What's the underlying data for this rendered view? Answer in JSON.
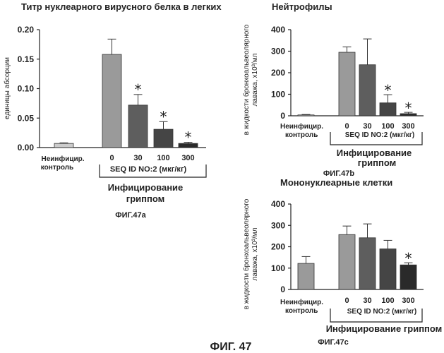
{
  "figure_caption": "ФИГ. 47",
  "chart_data": [
    {
      "type": "bar",
      "title": "Титр нуклеарного вирусного белка в легких",
      "ylabel": "единицы абсорции",
      "ylim": [
        0,
        0.2
      ],
      "yticks": [
        "0.00",
        "0.05",
        "0.10",
        "0.15",
        "0.20"
      ],
      "control_label_1": "Неинфицир.",
      "control_label_2": "контроль",
      "categories": [
        "0",
        "30",
        "100",
        "300"
      ],
      "dose_label": "SEQ ID NO:2 (мкг/кг)",
      "group_label_1": "Инфицирование",
      "group_label_2": "гриппом",
      "fig_label": "ФИГ.47a",
      "bars": [
        {
          "value": 0.007,
          "error": 0.001,
          "color": "#cccccc",
          "significant": false
        },
        {
          "value": 0.158,
          "error": 0.026,
          "color": "#9a9a9a",
          "significant": false
        },
        {
          "value": 0.072,
          "error": 0.018,
          "color": "#5e5e5e",
          "significant": true
        },
        {
          "value": 0.031,
          "error": 0.013,
          "color": "#454545",
          "significant": true
        },
        {
          "value": 0.007,
          "error": 0.002,
          "color": "#2a2a2a",
          "significant": true
        }
      ]
    },
    {
      "type": "bar",
      "title": "Нейтрофилы",
      "ylabel_1": "в жидкости бронхоальвеолярного",
      "ylabel_2": "лаважа, x10³/мл",
      "ylim": [
        0,
        400
      ],
      "yticks": [
        "0",
        "100",
        "200",
        "300",
        "400"
      ],
      "control_label_1": "Неинфицир.",
      "control_label_2": "контроль",
      "categories": [
        "0",
        "30",
        "100",
        "300"
      ],
      "dose_label": "SEQ ID NO:2 (мкг/кг)",
      "group_label_1": "Инфицирование",
      "group_label_2": "гриппом",
      "fig_label": "ФИГ.47b",
      "bars": [
        {
          "value": 4,
          "error": 2,
          "color": "#cccccc",
          "significant": false
        },
        {
          "value": 295,
          "error": 25,
          "color": "#9a9a9a",
          "significant": false
        },
        {
          "value": 237,
          "error": 120,
          "color": "#5e5e5e",
          "significant": false
        },
        {
          "value": 60,
          "error": 38,
          "color": "#454545",
          "significant": true
        },
        {
          "value": 10,
          "error": 6,
          "color": "#2a2a2a",
          "significant": true
        }
      ]
    },
    {
      "type": "bar",
      "title": "Мононуклеарные клетки",
      "ylabel_1": "в жидкости бронхоальвеолярного",
      "ylabel_2": "лаважа, x10³/мл",
      "ylim": [
        0,
        400
      ],
      "yticks": [
        "0",
        "100",
        "200",
        "300",
        "400"
      ],
      "control_label_1": "Неинфицир.",
      "control_label_2": "контроль",
      "categories": [
        "0",
        "30",
        "100",
        "300"
      ],
      "dose_label": "SEQ ID NO:2 (мкг/кг)",
      "group_label": "Инфицирование гриппом",
      "fig_label": "ФИГ.47c",
      "bars": [
        {
          "value": 122,
          "error": 32,
          "color": "#9a9a9a",
          "significant": false
        },
        {
          "value": 257,
          "error": 40,
          "color": "#9a9a9a",
          "significant": false
        },
        {
          "value": 242,
          "error": 65,
          "color": "#5e5e5e",
          "significant": false
        },
        {
          "value": 190,
          "error": 40,
          "color": "#454545",
          "significant": false
        },
        {
          "value": 115,
          "error": 10,
          "color": "#2a2a2a",
          "significant": true
        }
      ]
    }
  ]
}
